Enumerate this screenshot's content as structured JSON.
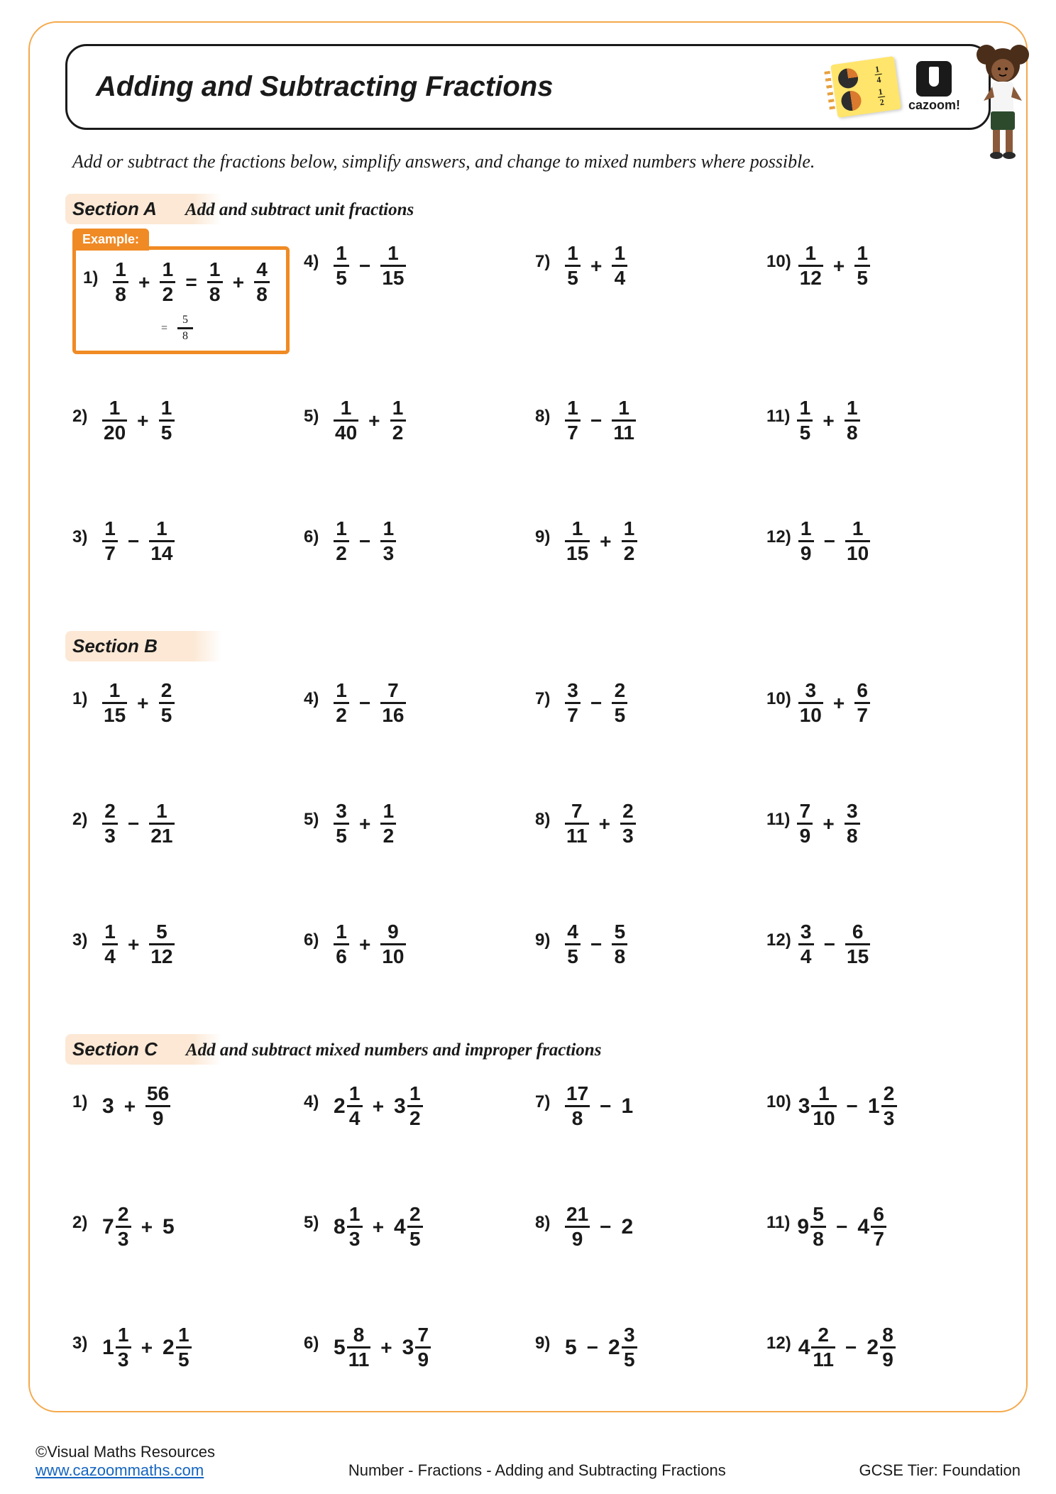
{
  "colors": {
    "page_border": "#f5a94c",
    "title_border": "#1a1a1a",
    "example_border": "#f08a24",
    "example_tag_bg": "#f08a24",
    "section_tint": "#fce8d5",
    "link": "#1565c0",
    "text": "#1a1a1a",
    "sticky_note": "#ffe56b"
  },
  "title": "Adding and Subtracting Fractions",
  "logo_text": "cazoom!",
  "instructions": "Add or subtract the fractions below, simplify answers, and change to mixed numbers where possible.",
  "example_label": "Example:",
  "sections": {
    "A": {
      "title": "Section A",
      "subtitle": "Add and subtract unit fractions",
      "example": {
        "num": "1)",
        "lhs": [
          {
            "n": "1",
            "d": "8"
          },
          "+",
          {
            "n": "1",
            "d": "2"
          }
        ],
        "step1": [
          {
            "n": "1",
            "d": "8"
          },
          "+",
          {
            "n": "4",
            "d": "8"
          }
        ],
        "step2": {
          "n": "5",
          "d": "8"
        }
      },
      "problems": [
        {
          "num": "4)",
          "terms": [
            {
              "n": "1",
              "d": "5"
            },
            "−",
            {
              "n": "1",
              "d": "15"
            }
          ]
        },
        {
          "num": "7)",
          "terms": [
            {
              "n": "1",
              "d": "5"
            },
            "+",
            {
              "n": "1",
              "d": "4"
            }
          ]
        },
        {
          "num": "10)",
          "terms": [
            {
              "n": "1",
              "d": "12"
            },
            "+",
            {
              "n": "1",
              "d": "5"
            }
          ]
        },
        {
          "num": "2)",
          "terms": [
            {
              "n": "1",
              "d": "20"
            },
            "+",
            {
              "n": "1",
              "d": "5"
            }
          ]
        },
        {
          "num": "5)",
          "terms": [
            {
              "n": "1",
              "d": "40"
            },
            "+",
            {
              "n": "1",
              "d": "2"
            }
          ]
        },
        {
          "num": "8)",
          "terms": [
            {
              "n": "1",
              "d": "7"
            },
            "−",
            {
              "n": "1",
              "d": "11"
            }
          ]
        },
        {
          "num": "11)",
          "terms": [
            {
              "n": "1",
              "d": "5"
            },
            "+",
            {
              "n": "1",
              "d": "8"
            }
          ]
        },
        {
          "num": "3)",
          "terms": [
            {
              "n": "1",
              "d": "7"
            },
            "−",
            {
              "n": "1",
              "d": "14"
            }
          ]
        },
        {
          "num": "6)",
          "terms": [
            {
              "n": "1",
              "d": "2"
            },
            "−",
            {
              "n": "1",
              "d": "3"
            }
          ]
        },
        {
          "num": "9)",
          "terms": [
            {
              "n": "1",
              "d": "15"
            },
            "+",
            {
              "n": "1",
              "d": "2"
            }
          ]
        },
        {
          "num": "12)",
          "terms": [
            {
              "n": "1",
              "d": "9"
            },
            "−",
            {
              "n": "1",
              "d": "10"
            }
          ]
        }
      ]
    },
    "B": {
      "title": "Section B",
      "subtitle": "",
      "problems": [
        {
          "num": "1)",
          "terms": [
            {
              "n": "1",
              "d": "15"
            },
            "+",
            {
              "n": "2",
              "d": "5"
            }
          ]
        },
        {
          "num": "4)",
          "terms": [
            {
              "n": "1",
              "d": "2"
            },
            "−",
            {
              "n": "7",
              "d": "16"
            }
          ]
        },
        {
          "num": "7)",
          "terms": [
            {
              "n": "3",
              "d": "7"
            },
            "−",
            {
              "n": "2",
              "d": "5"
            }
          ]
        },
        {
          "num": "10)",
          "terms": [
            {
              "n": "3",
              "d": "10"
            },
            "+",
            {
              "n": "6",
              "d": "7"
            }
          ]
        },
        {
          "num": "2)",
          "terms": [
            {
              "n": "2",
              "d": "3"
            },
            "−",
            {
              "n": "1",
              "d": "21"
            }
          ]
        },
        {
          "num": "5)",
          "terms": [
            {
              "n": "3",
              "d": "5"
            },
            "+",
            {
              "n": "1",
              "d": "2"
            }
          ]
        },
        {
          "num": "8)",
          "terms": [
            {
              "n": "7",
              "d": "11"
            },
            "+",
            {
              "n": "2",
              "d": "3"
            }
          ]
        },
        {
          "num": "11)",
          "terms": [
            {
              "n": "7",
              "d": "9"
            },
            "+",
            {
              "n": "3",
              "d": "8"
            }
          ]
        },
        {
          "num": "3)",
          "terms": [
            {
              "n": "1",
              "d": "4"
            },
            "+",
            {
              "n": "5",
              "d": "12"
            }
          ]
        },
        {
          "num": "6)",
          "terms": [
            {
              "n": "1",
              "d": "6"
            },
            "+",
            {
              "n": "9",
              "d": "10"
            }
          ]
        },
        {
          "num": "9)",
          "terms": [
            {
              "n": "4",
              "d": "5"
            },
            "−",
            {
              "n": "5",
              "d": "8"
            }
          ]
        },
        {
          "num": "12)",
          "terms": [
            {
              "n": "3",
              "d": "4"
            },
            "−",
            {
              "n": "6",
              "d": "15"
            }
          ]
        }
      ]
    },
    "C": {
      "title": "Section C",
      "subtitle": "Add and subtract mixed numbers and improper fractions",
      "problems": [
        {
          "num": "1)",
          "terms": [
            {
              "w": "3"
            },
            "+",
            {
              "n": "56",
              "d": "9"
            }
          ]
        },
        {
          "num": "4)",
          "terms": [
            {
              "w": "2",
              "n": "1",
              "d": "4"
            },
            "+",
            {
              "w": "3",
              "n": "1",
              "d": "2"
            }
          ]
        },
        {
          "num": "7)",
          "terms": [
            {
              "n": "17",
              "d": "8"
            },
            "−",
            {
              "w": "1"
            }
          ]
        },
        {
          "num": "10)",
          "terms": [
            {
              "w": "3",
              "n": "1",
              "d": "10"
            },
            "−",
            {
              "w": "1",
              "n": "2",
              "d": "3"
            }
          ]
        },
        {
          "num": "2)",
          "terms": [
            {
              "w": "7",
              "n": "2",
              "d": "3"
            },
            "+",
            {
              "w": "5"
            }
          ]
        },
        {
          "num": "5)",
          "terms": [
            {
              "w": "8",
              "n": "1",
              "d": "3"
            },
            "+",
            {
              "w": "4",
              "n": "2",
              "d": "5"
            }
          ]
        },
        {
          "num": "8)",
          "terms": [
            {
              "n": "21",
              "d": "9"
            },
            "−",
            {
              "w": "2"
            }
          ]
        },
        {
          "num": "11)",
          "terms": [
            {
              "w": "9",
              "n": "5",
              "d": "8"
            },
            "−",
            {
              "w": "4",
              "n": "6",
              "d": "7"
            }
          ]
        },
        {
          "num": "3)",
          "terms": [
            {
              "w": "1",
              "n": "1",
              "d": "3"
            },
            "+",
            {
              "w": "2",
              "n": "1",
              "d": "5"
            }
          ]
        },
        {
          "num": "6)",
          "terms": [
            {
              "w": "5",
              "n": "8",
              "d": "11"
            },
            "+",
            {
              "w": "3",
              "n": "7",
              "d": "9"
            }
          ]
        },
        {
          "num": "9)",
          "terms": [
            {
              "w": "5"
            },
            "−",
            {
              "w": "2",
              "n": "3",
              "d": "5"
            }
          ]
        },
        {
          "num": "12)",
          "terms": [
            {
              "w": "4",
              "n": "2",
              "d": "11"
            },
            "−",
            {
              "w": "2",
              "n": "8",
              "d": "9"
            }
          ]
        }
      ]
    }
  },
  "footer": {
    "copyright": "©Visual Maths Resources",
    "url": "www.cazoommaths.com",
    "center": "Number - Fractions - Adding and Subtracting Fractions",
    "right": "GCSE Tier: Foundation"
  }
}
